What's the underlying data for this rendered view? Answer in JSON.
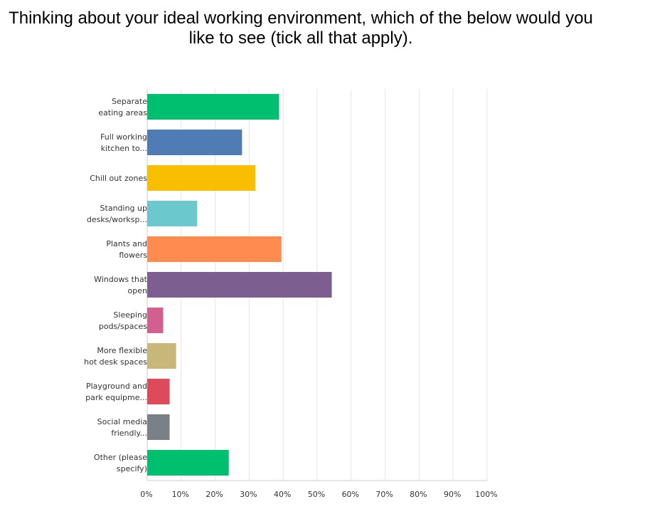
{
  "chart_data": {
    "type": "bar",
    "orientation": "horizontal",
    "title": "Thinking about your ideal working environment, which of the below would you like to see (tick all that apply).",
    "categories": [
      [
        "Separate",
        "eating areas"
      ],
      [
        "Full working",
        "kitchen to..."
      ],
      [
        "Chill out zones"
      ],
      [
        "Standing up",
        "desks/worksp..."
      ],
      [
        "Plants and",
        "flowers"
      ],
      [
        "Windows that",
        "open"
      ],
      [
        "Sleeping",
        "pods/spaces"
      ],
      [
        "More flexible",
        "hot desk spaces"
      ],
      [
        "Playground and",
        "park equipme..."
      ],
      [
        "Social media",
        "friendly..."
      ],
      [
        "Other (please",
        "specify)"
      ]
    ],
    "values": [
      38.8,
      27.9,
      31.8,
      14.7,
      39.5,
      54.3,
      4.7,
      8.5,
      6.6,
      6.6,
      24.0
    ],
    "colors": [
      "#00bf6f",
      "#507cb6",
      "#f9be00",
      "#6bc8cd",
      "#ff8b4f",
      "#7d5e90",
      "#d25f90",
      "#c7b879",
      "#dd4b5b",
      "#798086",
      "#00bf6f"
    ],
    "xlim": [
      0,
      100
    ],
    "xticks": [
      "0%",
      "10%",
      "20%",
      "30%",
      "40%",
      "50%",
      "60%",
      "70%",
      "80%",
      "90%",
      "100%"
    ],
    "grid": true,
    "xlabel": "",
    "ylabel": ""
  }
}
